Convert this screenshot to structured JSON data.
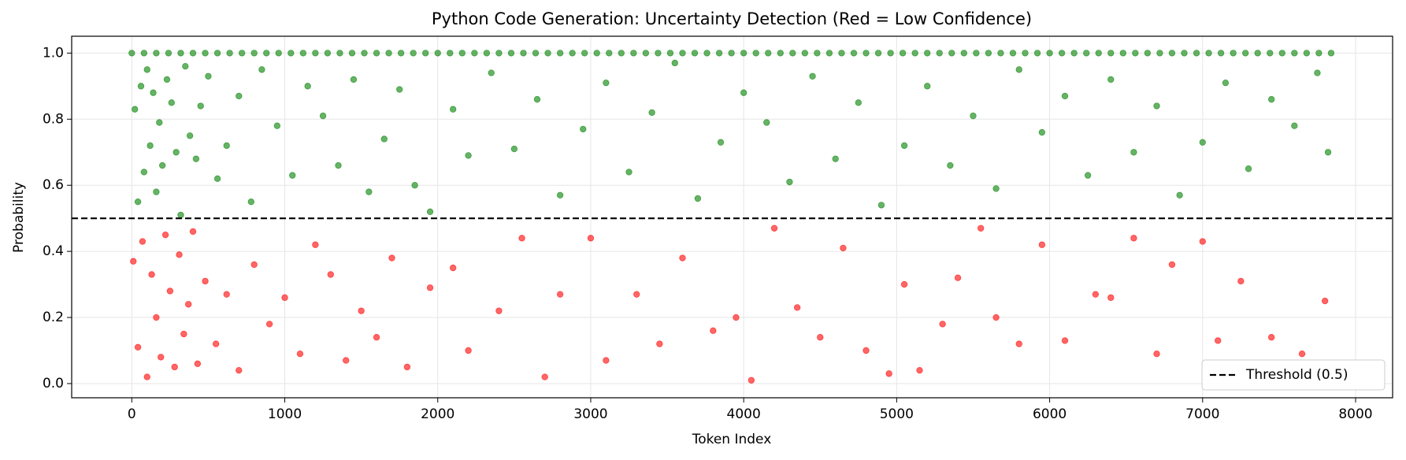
{
  "chart_data": {
    "type": "scatter",
    "title": "Python Code Generation: Uncertainty Detection (Red = Low Confidence)",
    "xlabel": "Token Index",
    "ylabel": "Probability",
    "xlim": [
      -393,
      8242
    ],
    "ylim": [
      -0.043,
      1.051
    ],
    "xticks": [
      0,
      1000,
      2000,
      3000,
      4000,
      5000,
      6000,
      7000,
      8000
    ],
    "yticks": [
      {
        "value": 0,
        "label": "0.0"
      },
      0.2,
      0.4,
      0.6,
      0.8,
      {
        "value": 1,
        "label": "1.0"
      }
    ],
    "grid": true,
    "legend": "lower right",
    "threshold": {
      "value": 0.5,
      "label": "Threshold (0.5)",
      "color": "#000000"
    },
    "series": [
      {
        "color": "#008000",
        "x": [
          0,
          80,
          160,
          240,
          320,
          400,
          480,
          560,
          640,
          720,
          800,
          880,
          960,
          1040,
          1120,
          1200,
          1280,
          1360,
          1440,
          1520,
          1600,
          1680,
          1760,
          1840,
          1920,
          2000,
          2080,
          2160,
          2240,
          2320,
          2400,
          2480,
          2560,
          2640,
          2720,
          2800,
          2880,
          2960,
          3040,
          3120,
          3200,
          3280,
          3360,
          3440,
          3520,
          3600,
          3680,
          3760,
          3840,
          3920,
          4000,
          4080,
          4160,
          4240,
          4320,
          4400,
          4480,
          4560,
          4640,
          4720,
          4800,
          4880,
          4960,
          5040,
          5120,
          5200,
          5280,
          5360,
          5440,
          5520,
          5600,
          5680,
          5760,
          5840,
          5920,
          6000,
          6080,
          6160,
          6240,
          6320,
          6400,
          6480,
          6560,
          6640,
          6720,
          6800,
          6880,
          6960,
          7040,
          7120,
          7200,
          7280,
          7360,
          7440,
          7520,
          7600,
          7680,
          7760,
          7840
        ],
        "values": [
          1,
          1,
          1,
          1,
          1,
          1,
          1,
          1,
          1,
          1,
          1,
          1,
          1,
          1,
          1,
          1,
          1,
          1,
          1,
          1,
          1,
          1,
          1,
          1,
          1,
          1,
          1,
          1,
          1,
          1,
          1,
          1,
          1,
          1,
          1,
          1,
          1,
          1,
          1,
          1,
          1,
          1,
          1,
          1,
          1,
          1,
          1,
          1,
          1,
          1,
          1,
          1,
          1,
          1,
          1,
          1,
          1,
          1,
          1,
          1,
          1,
          1,
          1,
          1,
          1,
          1,
          1,
          1,
          1,
          1,
          1,
          1,
          1,
          1,
          1,
          1,
          1,
          1,
          1,
          1,
          1,
          1,
          1,
          1,
          1,
          1,
          1,
          1,
          1,
          1,
          1,
          1,
          1,
          1,
          1,
          1,
          1,
          1,
          1
        ]
      },
      {
        "color": "#008000",
        "x": [
          20,
          40,
          60,
          80,
          100,
          120,
          140,
          160,
          180,
          200,
          230,
          260,
          290,
          320,
          350,
          380,
          420,
          450,
          500,
          560,
          620,
          700,
          780,
          850,
          950,
          1050,
          1150,
          1250,
          1350,
          1450,
          1550,
          1650,
          1750,
          1850,
          1950,
          2100,
          2200,
          2350,
          2500,
          2650,
          2800,
          2950,
          3100,
          3250,
          3400,
          3550,
          3700,
          3850,
          4000,
          4150,
          4300,
          4450,
          4600,
          4750,
          4900,
          5050,
          5200,
          5350,
          5500,
          5650,
          5800,
          5950,
          6100,
          6250,
          6400,
          6550,
          6700,
          6850,
          7000,
          7150,
          7300,
          7450,
          7600,
          7750,
          7820
        ],
        "values": [
          0.83,
          0.55,
          0.9,
          0.64,
          0.95,
          0.72,
          0.88,
          0.58,
          0.79,
          0.66,
          0.92,
          0.85,
          0.7,
          0.51,
          0.96,
          0.75,
          0.68,
          0.84,
          0.93,
          0.62,
          0.72,
          0.87,
          0.55,
          0.95,
          0.78,
          0.63,
          0.9,
          0.81,
          0.66,
          0.92,
          0.58,
          0.74,
          0.89,
          0.6,
          0.52,
          0.83,
          0.69,
          0.94,
          0.71,
          0.86,
          0.57,
          0.77,
          0.91,
          0.64,
          0.82,
          0.97,
          0.56,
          0.73,
          0.88,
          0.79,
          0.61,
          0.93,
          0.68,
          0.85,
          0.54,
          0.72,
          0.9,
          0.66,
          0.81,
          0.59,
          0.95,
          0.76,
          0.87,
          0.63,
          0.92,
          0.7,
          0.84,
          0.57,
          0.73,
          0.91,
          0.65,
          0.86,
          0.78,
          0.94,
          0.7
        ]
      },
      {
        "color": "#ff0000",
        "x": [
          10,
          40,
          70,
          100,
          130,
          160,
          190,
          220,
          250,
          280,
          310,
          340,
          370,
          400,
          430,
          480,
          550,
          620,
          700,
          800,
          900,
          1000,
          1100,
          1200,
          1300,
          1400,
          1500,
          1600,
          1700,
          1800,
          1950,
          2100,
          2200,
          2400,
          2550,
          2700,
          2800,
          3000,
          3100,
          3300,
          3450,
          3600,
          3800,
          3950,
          4050,
          4200,
          4350,
          4500,
          4650,
          4800,
          4950,
          5050,
          5150,
          5300,
          5400,
          5550,
          5650,
          5800,
          5950,
          6100,
          6300,
          6400,
          6550,
          6700,
          6800,
          7000,
          7100,
          7250,
          7450,
          7650,
          7800
        ],
        "values": [
          0.37,
          0.11,
          0.43,
          0.02,
          0.33,
          0.2,
          0.08,
          0.45,
          0.28,
          0.05,
          0.39,
          0.15,
          0.24,
          0.46,
          0.06,
          0.31,
          0.12,
          0.27,
          0.04,
          0.36,
          0.18,
          0.26,
          0.09,
          0.42,
          0.33,
          0.07,
          0.22,
          0.14,
          0.38,
          0.05,
          0.29,
          0.35,
          0.1,
          0.22,
          0.44,
          0.02,
          0.27,
          0.44,
          0.07,
          0.27,
          0.12,
          0.38,
          0.16,
          0.2,
          0.01,
          0.47,
          0.23,
          0.14,
          0.41,
          0.1,
          0.03,
          0.3,
          0.04,
          0.18,
          0.32,
          0.47,
          0.2,
          0.12,
          0.42,
          0.13,
          0.27,
          0.26,
          0.44,
          0.09,
          0.36,
          0.43,
          0.13,
          0.31,
          0.14,
          0.09,
          0.25
        ]
      }
    ]
  }
}
